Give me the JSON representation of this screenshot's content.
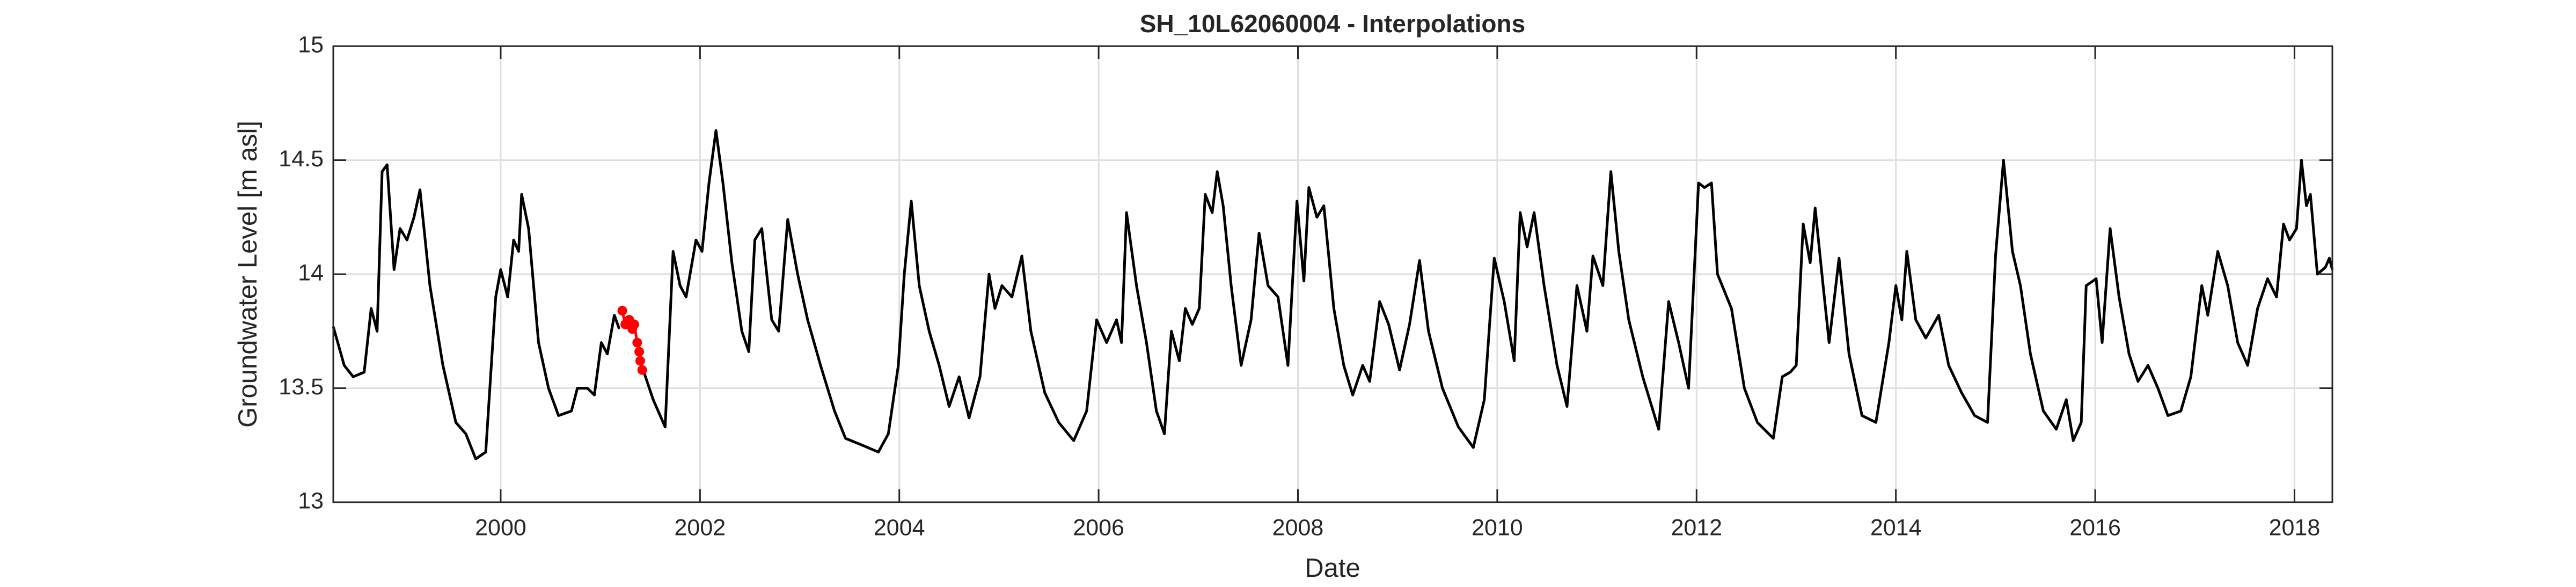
{
  "chart_data": {
    "type": "line",
    "title": "SH_10L62060004 - Interpolations",
    "x_label": "Date",
    "y_label": "Groundwater Level [m asl]",
    "xlim": [
      1998.32,
      2018.38
    ],
    "xticks": [
      2000,
      2002,
      2004,
      2006,
      2008,
      2010,
      2012,
      2014,
      2016,
      2018
    ],
    "ylim": [
      13,
      15
    ],
    "yticks": [
      13,
      13.5,
      14,
      14.5,
      15
    ],
    "grid": true,
    "series": [
      {
        "color": "#000000",
        "marker": null,
        "x": [
          1998.32,
          1998.43,
          1998.52,
          1998.63,
          1998.7,
          1998.76,
          1998.81,
          1998.86,
          1998.93,
          1998.99,
          1999.06,
          1999.13,
          1999.19,
          1999.29,
          1999.42,
          1999.55,
          1999.65,
          1999.75,
          1999.85,
          1999.95,
          2000.0,
          2000.07,
          2000.13,
          2000.18,
          2000.21,
          2000.28,
          2000.38,
          2000.48,
          2000.58,
          2000.71,
          2000.77,
          2000.87,
          2000.94,
          2001.01,
          2001.07,
          2001.14,
          2001.19,
          null,
          2001.43,
          2001.53,
          2001.65,
          2001.73,
          2001.8,
          2001.86,
          2001.96,
          2002.02,
          2002.09,
          2002.16,
          2002.23,
          2002.32,
          2002.42,
          2002.49,
          2002.55,
          2002.62,
          2002.72,
          2002.79,
          2002.88,
          2002.98,
          2003.08,
          2003.21,
          2003.35,
          2003.46,
          2003.63,
          2003.79,
          2003.89,
          2003.99,
          2004.05,
          2004.12,
          2004.2,
          2004.3,
          2004.4,
          2004.5,
          2004.6,
          2004.7,
          2004.81,
          2004.9,
          2004.96,
          2005.03,
          2005.13,
          2005.23,
          2005.32,
          2005.46,
          2005.6,
          2005.75,
          2005.88,
          2005.98,
          2006.08,
          2006.18,
          2006.23,
          2006.28,
          2006.38,
          2006.48,
          2006.58,
          2006.66,
          2006.73,
          2006.81,
          2006.87,
          2006.94,
          2007.01,
          2007.07,
          2007.14,
          2007.19,
          2007.25,
          2007.33,
          2007.43,
          2007.53,
          2007.61,
          2007.7,
          2007.8,
          2007.9,
          2007.99,
          2008.06,
          2008.11,
          2008.19,
          2008.26,
          2008.36,
          2008.46,
          2008.55,
          2008.65,
          2008.72,
          2008.82,
          2008.91,
          2009.02,
          2009.12,
          2009.22,
          2009.31,
          2009.45,
          2009.61,
          2009.76,
          2009.87,
          2009.97,
          2010.07,
          2010.17,
          2010.23,
          2010.3,
          2010.37,
          2010.47,
          2010.6,
          2010.7,
          2010.8,
          2010.9,
          2010.96,
          2011.06,
          2011.14,
          2011.22,
          2011.32,
          2011.46,
          2011.62,
          2011.72,
          2011.82,
          2011.92,
          2012.02,
          2012.08,
          2012.15,
          2012.21,
          2012.35,
          2012.48,
          2012.61,
          2012.77,
          2012.86,
          2012.94,
          2013.0,
          2013.07,
          2013.14,
          2013.19,
          2013.27,
          2013.33,
          2013.43,
          2013.53,
          2013.66,
          2013.8,
          2013.93,
          2014.0,
          2014.06,
          2014.11,
          2014.2,
          2014.3,
          2014.43,
          2014.53,
          2014.66,
          2014.79,
          2014.92,
          2015.0,
          2015.08,
          2015.17,
          2015.25,
          2015.35,
          2015.48,
          2015.61,
          2015.71,
          2015.78,
          2015.86,
          2015.91,
          2016.01,
          2016.07,
          2016.15,
          2016.24,
          2016.34,
          2016.43,
          2016.53,
          2016.63,
          2016.73,
          2016.86,
          2016.96,
          2017.07,
          2017.13,
          2017.23,
          2017.33,
          2017.43,
          2017.53,
          2017.63,
          2017.73,
          2017.82,
          2017.89,
          2017.95,
          2018.02,
          2018.07,
          2018.12,
          2018.16,
          2018.23,
          2018.31,
          2018.35,
          2018.38
        ],
        "values": [
          13.77,
          13.6,
          13.55,
          13.57,
          13.85,
          13.75,
          14.45,
          14.48,
          14.02,
          14.2,
          14.15,
          14.25,
          14.37,
          13.95,
          13.6,
          13.35,
          13.3,
          13.19,
          13.22,
          13.9,
          14.02,
          13.9,
          14.15,
          14.1,
          14.35,
          14.2,
          13.7,
          13.5,
          13.38,
          13.4,
          13.5,
          13.5,
          13.47,
          13.7,
          13.65,
          13.82,
          13.76,
          null,
          13.58,
          13.45,
          13.33,
          14.1,
          13.95,
          13.9,
          14.15,
          14.1,
          14.4,
          14.63,
          14.4,
          14.05,
          13.75,
          13.66,
          14.15,
          14.2,
          13.8,
          13.75,
          14.24,
          14.0,
          13.8,
          13.6,
          13.4,
          13.28,
          13.25,
          13.22,
          13.3,
          13.6,
          14.0,
          14.32,
          13.95,
          13.75,
          13.6,
          13.42,
          13.55,
          13.37,
          13.55,
          14.0,
          13.85,
          13.95,
          13.9,
          14.08,
          13.75,
          13.48,
          13.35,
          13.27,
          13.4,
          13.8,
          13.7,
          13.8,
          13.7,
          14.27,
          13.95,
          13.7,
          13.4,
          13.3,
          13.75,
          13.62,
          13.85,
          13.78,
          13.85,
          14.35,
          14.27,
          14.45,
          14.3,
          13.95,
          13.6,
          13.8,
          14.18,
          13.95,
          13.9,
          13.6,
          14.32,
          13.97,
          14.38,
          14.25,
          14.3,
          13.85,
          13.6,
          13.47,
          13.6,
          13.53,
          13.88,
          13.78,
          13.58,
          13.78,
          14.06,
          13.75,
          13.5,
          13.33,
          13.24,
          13.45,
          14.07,
          13.88,
          13.62,
          14.27,
          14.12,
          14.27,
          13.95,
          13.6,
          13.42,
          13.95,
          13.75,
          14.08,
          13.95,
          14.45,
          14.1,
          13.8,
          13.55,
          13.32,
          13.88,
          13.7,
          13.5,
          14.4,
          14.38,
          14.4,
          14.0,
          13.85,
          13.5,
          13.35,
          13.28,
          13.55,
          13.57,
          13.6,
          14.22,
          14.05,
          14.29,
          13.95,
          13.7,
          14.07,
          13.65,
          13.38,
          13.35,
          13.7,
          13.95,
          13.8,
          14.1,
          13.8,
          13.72,
          13.82,
          13.6,
          13.48,
          13.38,
          13.35,
          14.08,
          14.5,
          14.1,
          13.95,
          13.65,
          13.4,
          13.32,
          13.45,
          13.27,
          13.35,
          13.95,
          13.98,
          13.7,
          14.2,
          13.9,
          13.65,
          13.53,
          13.6,
          13.5,
          13.38,
          13.4,
          13.55,
          13.95,
          13.82,
          14.1,
          13.95,
          13.7,
          13.6,
          13.85,
          13.98,
          13.9,
          14.22,
          14.15,
          14.2,
          14.5,
          14.3,
          14.35,
          14.0,
          14.03,
          14.07,
          14.02
        ]
      },
      {
        "color": "#ff0000",
        "marker": "o",
        "x": [
          2001.22,
          2001.25,
          2001.29,
          2001.32,
          2001.34,
          2001.37,
          2001.39,
          2001.4,
          2001.42
        ],
        "values": [
          13.84,
          13.78,
          13.8,
          13.76,
          13.78,
          13.7,
          13.66,
          13.62,
          13.58
        ]
      }
    ]
  }
}
